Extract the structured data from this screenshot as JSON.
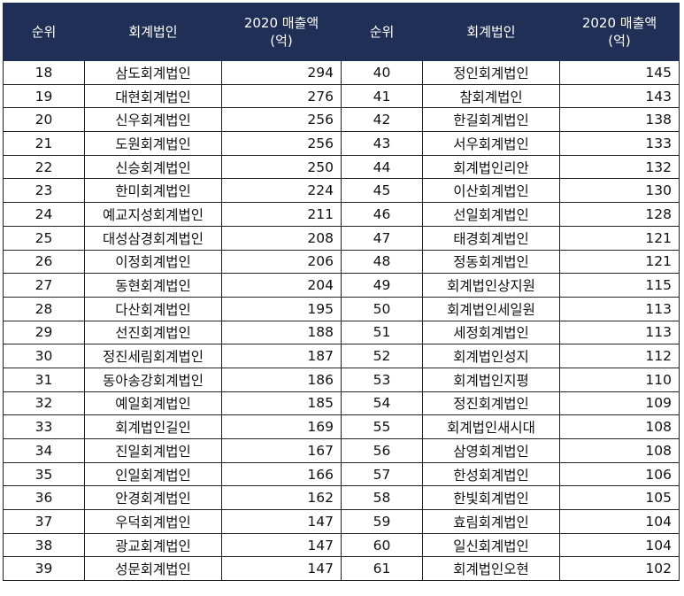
{
  "headers": {
    "rank": "순위",
    "firm": "회계법인",
    "revenue_line1": "2020 매출액",
    "revenue_line2": "(억)"
  },
  "rows": [
    {
      "l": {
        "rank": "18",
        "name": "삼도회계법인",
        "rev": "294"
      },
      "r": {
        "rank": "40",
        "name": "정인회계법인",
        "rev": "145"
      }
    },
    {
      "l": {
        "rank": "19",
        "name": "대현회계법인",
        "rev": "276"
      },
      "r": {
        "rank": "41",
        "name": "참회계법인",
        "rev": "143"
      }
    },
    {
      "l": {
        "rank": "20",
        "name": "신우회계법인",
        "rev": "256"
      },
      "r": {
        "rank": "42",
        "name": "한길회계법인",
        "rev": "138"
      }
    },
    {
      "l": {
        "rank": "21",
        "name": "도원회계법인",
        "rev": "256"
      },
      "r": {
        "rank": "43",
        "name": "서우회계법인",
        "rev": "133"
      }
    },
    {
      "l": {
        "rank": "22",
        "name": "신승회계법인",
        "rev": "250"
      },
      "r": {
        "rank": "44",
        "name": "회계법인리안",
        "rev": "132"
      }
    },
    {
      "l": {
        "rank": "23",
        "name": "한미회계법인",
        "rev": "224"
      },
      "r": {
        "rank": "45",
        "name": "이산회계법인",
        "rev": "130"
      }
    },
    {
      "l": {
        "rank": "24",
        "name": "예교지성회계법인",
        "rev": "211"
      },
      "r": {
        "rank": "46",
        "name": "선일회계법인",
        "rev": "128"
      }
    },
    {
      "l": {
        "rank": "25",
        "name": "대성삼경회계법인",
        "rev": "208"
      },
      "r": {
        "rank": "47",
        "name": "태경회계법인",
        "rev": "121"
      }
    },
    {
      "l": {
        "rank": "26",
        "name": "이정회계법인",
        "rev": "206"
      },
      "r": {
        "rank": "48",
        "name": "정동회계법인",
        "rev": "121"
      }
    },
    {
      "l": {
        "rank": "27",
        "name": "동현회계법인",
        "rev": "204"
      },
      "r": {
        "rank": "49",
        "name": "회계법인상지원",
        "rev": "115"
      }
    },
    {
      "l": {
        "rank": "28",
        "name": "다산회계법인",
        "rev": "195"
      },
      "r": {
        "rank": "50",
        "name": "회계법인세일원",
        "rev": "113"
      }
    },
    {
      "l": {
        "rank": "29",
        "name": "선진회계법인",
        "rev": "188"
      },
      "r": {
        "rank": "51",
        "name": "세정회계법인",
        "rev": "113"
      }
    },
    {
      "l": {
        "rank": "30",
        "name": "정진세림회계법인",
        "rev": "187"
      },
      "r": {
        "rank": "52",
        "name": "회계법인성지",
        "rev": "112"
      }
    },
    {
      "l": {
        "rank": "31",
        "name": "동아송강회계법인",
        "rev": "186"
      },
      "r": {
        "rank": "53",
        "name": "회계법인지평",
        "rev": "110"
      }
    },
    {
      "l": {
        "rank": "32",
        "name": "예일회계법인",
        "rev": "185"
      },
      "r": {
        "rank": "54",
        "name": "정진회계법인",
        "rev": "109"
      }
    },
    {
      "l": {
        "rank": "33",
        "name": "회계법인길인",
        "rev": "169"
      },
      "r": {
        "rank": "55",
        "name": "회계법인새시대",
        "rev": "108"
      }
    },
    {
      "l": {
        "rank": "34",
        "name": "진일회계법인",
        "rev": "167"
      },
      "r": {
        "rank": "56",
        "name": "삼영회계법인",
        "rev": "108"
      }
    },
    {
      "l": {
        "rank": "35",
        "name": "인일회계법인",
        "rev": "166"
      },
      "r": {
        "rank": "57",
        "name": "한성회계법인",
        "rev": "106"
      }
    },
    {
      "l": {
        "rank": "36",
        "name": "안경회계법인",
        "rev": "162"
      },
      "r": {
        "rank": "58",
        "name": "한빛회계법인",
        "rev": "105"
      }
    },
    {
      "l": {
        "rank": "37",
        "name": "우덕회계법인",
        "rev": "147"
      },
      "r": {
        "rank": "59",
        "name": "효림회계법인",
        "rev": "104"
      }
    },
    {
      "l": {
        "rank": "38",
        "name": "광교회계법인",
        "rev": "147"
      },
      "r": {
        "rank": "60",
        "name": "일신회계법인",
        "rev": "104"
      }
    },
    {
      "l": {
        "rank": "39",
        "name": "성문회계법인",
        "rev": "147"
      },
      "r": {
        "rank": "61",
        "name": "회계법인오현",
        "rev": "102"
      }
    }
  ]
}
